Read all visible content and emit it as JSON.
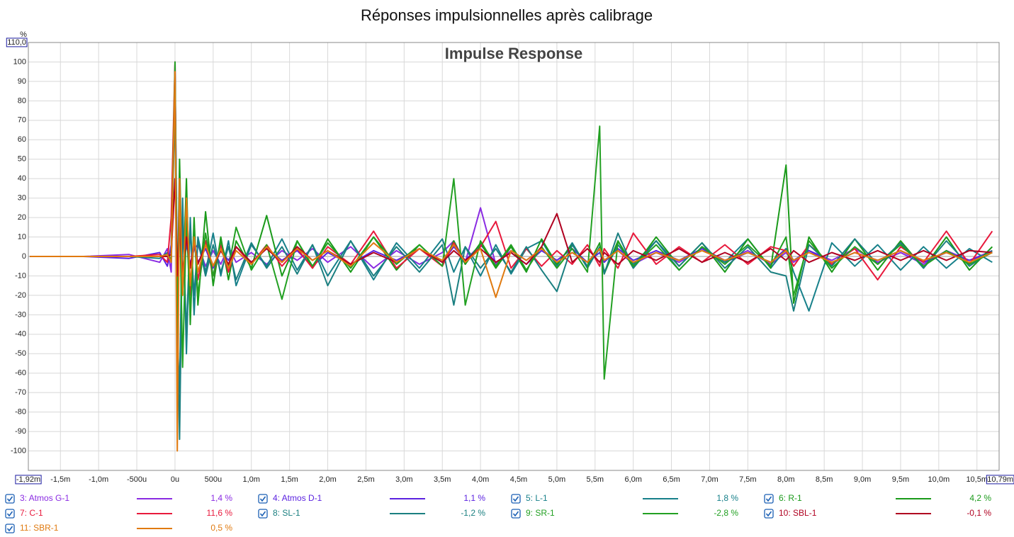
{
  "chart_data": {
    "type": "line",
    "title": "Réponses impulsionnelles après calibrage",
    "subtitle": "Impulse Response",
    "y_label": "%",
    "grid": true,
    "xlim": [
      -1.92,
      10.79
    ],
    "ylim": [
      -110,
      110
    ],
    "xticks": [
      {
        "value": -1.92,
        "label": "-1,92m"
      },
      {
        "value": -1.5,
        "label": "-1,5m"
      },
      {
        "value": -1.0,
        "label": "-1,0m"
      },
      {
        "value": -0.5,
        "label": "-500u"
      },
      {
        "value": 0,
        "label": "0u"
      },
      {
        "value": 0.5,
        "label": "500u"
      },
      {
        "value": 1.0,
        "label": "1,0m"
      },
      {
        "value": 1.5,
        "label": "1,5m"
      },
      {
        "value": 2.0,
        "label": "2,0m"
      },
      {
        "value": 2.5,
        "label": "2,5m"
      },
      {
        "value": 3.0,
        "label": "3,0m"
      },
      {
        "value": 3.5,
        "label": "3,5m"
      },
      {
        "value": 4.0,
        "label": "4,0m"
      },
      {
        "value": 4.5,
        "label": "4,5m"
      },
      {
        "value": 5.0,
        "label": "5,0m"
      },
      {
        "value": 5.5,
        "label": "5,5m"
      },
      {
        "value": 6.0,
        "label": "6,0m"
      },
      {
        "value": 6.5,
        "label": "6,5m"
      },
      {
        "value": 7.0,
        "label": "7,0m"
      },
      {
        "value": 7.5,
        "label": "7,5m"
      },
      {
        "value": 8.0,
        "label": "8,0m"
      },
      {
        "value": 8.5,
        "label": "8,5m"
      },
      {
        "value": 9.0,
        "label": "9,0m"
      },
      {
        "value": 9.5,
        "label": "9,5m"
      },
      {
        "value": 10.0,
        "label": "10,0m"
      },
      {
        "value": 10.5,
        "label": "10,5m"
      },
      {
        "value": 10.79,
        "label": "10,79m"
      }
    ],
    "yticks": [
      -100,
      -90,
      -80,
      -70,
      -60,
      -50,
      -40,
      -30,
      -20,
      -10,
      0,
      10,
      20,
      30,
      40,
      50,
      60,
      70,
      80,
      90,
      100,
      {
        "value": 110,
        "label": "110,0"
      }
    ],
    "x": [
      -1.9,
      -1.2,
      -0.6,
      -0.2,
      -0.1,
      -0.05,
      0,
      0.03,
      0.06,
      0.1,
      0.15,
      0.2,
      0.25,
      0.3,
      0.4,
      0.5,
      0.6,
      0.7,
      0.8,
      1.0,
      1.2,
      1.4,
      1.6,
      1.8,
      2.0,
      2.3,
      2.6,
      2.9,
      3.2,
      3.5,
      3.65,
      3.8,
      4.0,
      4.2,
      4.4,
      4.6,
      4.8,
      5.0,
      5.2,
      5.4,
      5.56,
      5.62,
      5.8,
      6.0,
      6.3,
      6.6,
      6.9,
      7.2,
      7.5,
      7.8,
      8.0,
      8.1,
      8.3,
      8.6,
      8.9,
      9.2,
      9.5,
      9.8,
      10.1,
      10.4,
      10.7
    ],
    "series": [
      {
        "name": "3: Atmos G-1",
        "color": "#8a2be2",
        "legend_value": {
          "value": 1.4,
          "label": "1,4 %"
        },
        "values": [
          0,
          0,
          1,
          -3,
          4,
          -8,
          100,
          -20,
          30,
          -10,
          8,
          -5,
          4,
          6,
          -5,
          3,
          -4,
          5,
          -3,
          2,
          -4,
          3,
          -2,
          4,
          -3,
          5,
          -6,
          3,
          -4,
          2,
          8,
          -3,
          25,
          -4,
          3,
          -2,
          4,
          -3,
          2,
          -3,
          4,
          -2,
          3,
          -4,
          2,
          -3,
          4,
          -2,
          3,
          -4,
          2,
          -3,
          3,
          -2,
          4,
          -3,
          2,
          -4,
          3,
          -2,
          3
        ]
      },
      {
        "name": "4: Atmos D-1",
        "color": "#5b22e0",
        "legend_value": {
          "value": 1.1,
          "label": "1,1 %"
        },
        "values": [
          0,
          0,
          -1,
          2,
          -5,
          6,
          95,
          -15,
          20,
          -8,
          6,
          -4,
          5,
          -3,
          4,
          -6,
          3,
          -2,
          5,
          -3,
          4,
          -2,
          3,
          -5,
          2,
          -4,
          3,
          -2,
          4,
          -3,
          5,
          -2,
          6,
          -3,
          2,
          -4,
          3,
          -2,
          4,
          -3,
          2,
          -3,
          4,
          -2,
          3,
          -2,
          4,
          -3,
          2,
          -3,
          4,
          -2,
          3,
          -3,
          2,
          -2,
          3,
          -3,
          2,
          -2,
          2
        ]
      },
      {
        "name": "5: L-1",
        "color": "#17808a",
        "legend_value": {
          "value": 1.8,
          "label": "1,8 %"
        },
        "values": [
          0,
          0,
          0,
          -1,
          2,
          -3,
          80,
          -40,
          -70,
          30,
          -50,
          20,
          -30,
          10,
          -8,
          12,
          -10,
          8,
          -15,
          6,
          -5,
          9,
          -7,
          6,
          -10,
          8,
          -12,
          7,
          -6,
          9,
          -8,
          5,
          -10,
          6,
          -9,
          4,
          8,
          -5,
          7,
          -6,
          5,
          -8,
          6,
          -4,
          8,
          -7,
          5,
          -3,
          9,
          -6,
          4,
          -8,
          -28,
          7,
          -5,
          6,
          -7,
          5,
          -6,
          4,
          -3
        ]
      },
      {
        "name": "6: R-1",
        "color": "#1a9a1a",
        "legend_value": {
          "value": 4.2,
          "label": "4,2 %"
        },
        "values": [
          0,
          0,
          0,
          0,
          1,
          -2,
          90,
          -30,
          50,
          -20,
          40,
          -35,
          20,
          -25,
          23,
          -15,
          10,
          -12,
          8,
          -6,
          21,
          -10,
          8,
          -6,
          9,
          -8,
          10,
          -7,
          6,
          -5,
          8,
          -4,
          7,
          -6,
          5,
          -8,
          9,
          -4,
          6,
          -5,
          7,
          -9,
          8,
          -6,
          10,
          -5,
          7,
          -8,
          9,
          -6,
          47,
          -24,
          10,
          -8,
          9,
          -7,
          8,
          -6,
          10,
          -7,
          5
        ]
      },
      {
        "name": "7: C-1",
        "color": "#e8193c",
        "legend_value": {
          "value": 11.6,
          "label": "11,6 %"
        },
        "values": [
          0,
          0,
          0,
          1,
          -3,
          20,
          100,
          -55,
          40,
          -15,
          25,
          -20,
          10,
          -12,
          8,
          -10,
          6,
          -8,
          5,
          -4,
          6,
          -5,
          4,
          -6,
          5,
          -4,
          13,
          -6,
          4,
          -5,
          7,
          -3,
          5,
          18,
          -6,
          4,
          -5,
          3,
          -4,
          6,
          -5,
          4,
          -6,
          12,
          -4,
          5,
          -3,
          6,
          -4,
          5,
          3,
          -5,
          6,
          -4,
          4,
          -12,
          5,
          -3,
          13,
          -4,
          13
        ]
      },
      {
        "name": "8: SL-1",
        "color": "#1a7f80",
        "legend_value": {
          "value": -1.2,
          "label": "-1,2 %"
        },
        "values": [
          0,
          0,
          0,
          0,
          1,
          -2,
          85,
          -30,
          -94,
          20,
          -40,
          15,
          -20,
          8,
          -10,
          6,
          -8,
          5,
          -12,
          7,
          -6,
          5,
          -9,
          6,
          -15,
          8,
          -10,
          5,
          -8,
          6,
          -25,
          5,
          -6,
          4,
          -8,
          5,
          -7,
          -18,
          6,
          -5,
          4,
          -9,
          12,
          -6,
          8,
          -5,
          7,
          -6,
          5,
          -8,
          -10,
          -28,
          6,
          -5,
          9,
          -4,
          7,
          -6,
          8,
          -5,
          3
        ]
      },
      {
        "name": "9: SR-1",
        "color": "#22a022",
        "legend_value": {
          "value": -2.8,
          "label": "-2,8 %"
        },
        "values": [
          0,
          0,
          0,
          0,
          0,
          -1,
          100,
          -40,
          30,
          -57,
          20,
          -30,
          15,
          -20,
          12,
          -10,
          8,
          -6,
          15,
          -7,
          6,
          -22,
          8,
          -5,
          7,
          -6,
          10,
          -4,
          6,
          -5,
          40,
          -25,
          8,
          -5,
          6,
          -7,
          5,
          -6,
          4,
          -8,
          67,
          -63,
          8,
          -5,
          6,
          -7,
          5,
          -4,
          6,
          -5,
          10,
          -20,
          8,
          -6,
          5,
          -4,
          6,
          -5,
          3,
          -4,
          2
        ]
      },
      {
        "name": "10: SBL-1",
        "color": "#b00020",
        "legend_value": {
          "value": -0.1,
          "label": "-0,1 %"
        },
        "values": [
          0,
          0,
          0,
          0,
          0,
          1,
          40,
          -10,
          15,
          -8,
          10,
          -6,
          8,
          -4,
          6,
          -5,
          3,
          -4,
          5,
          -3,
          4,
          -3,
          5,
          -2,
          3,
          -4,
          2,
          -3,
          4,
          -3,
          3,
          -2,
          4,
          -3,
          2,
          -4,
          5,
          22,
          -3,
          4,
          -3,
          2,
          -4,
          3,
          -2,
          4,
          -3,
          2,
          -3,
          4,
          -2,
          3,
          -3,
          2,
          -2,
          3,
          -2,
          3,
          -2,
          3,
          2
        ]
      },
      {
        "name": "11: SBR-1",
        "color": "#e07a10",
        "legend_value": {
          "value": 0.5,
          "label": "0,5 %"
        },
        "values": [
          0,
          0,
          0,
          0,
          1,
          -3,
          95,
          -100,
          40,
          -20,
          30,
          -15,
          10,
          -8,
          6,
          -5,
          4,
          -6,
          3,
          -4,
          5,
          -3,
          4,
          -2,
          3,
          -5,
          7,
          -3,
          4,
          -2,
          6,
          -3,
          4,
          -21,
          3,
          -2,
          4,
          -3,
          2,
          -3,
          4,
          -2,
          3,
          -3,
          2,
          -2,
          3,
          -2,
          2,
          -3,
          3,
          -2,
          2,
          -3,
          2,
          -2,
          3,
          -2,
          2,
          -3,
          2
        ]
      }
    ]
  }
}
